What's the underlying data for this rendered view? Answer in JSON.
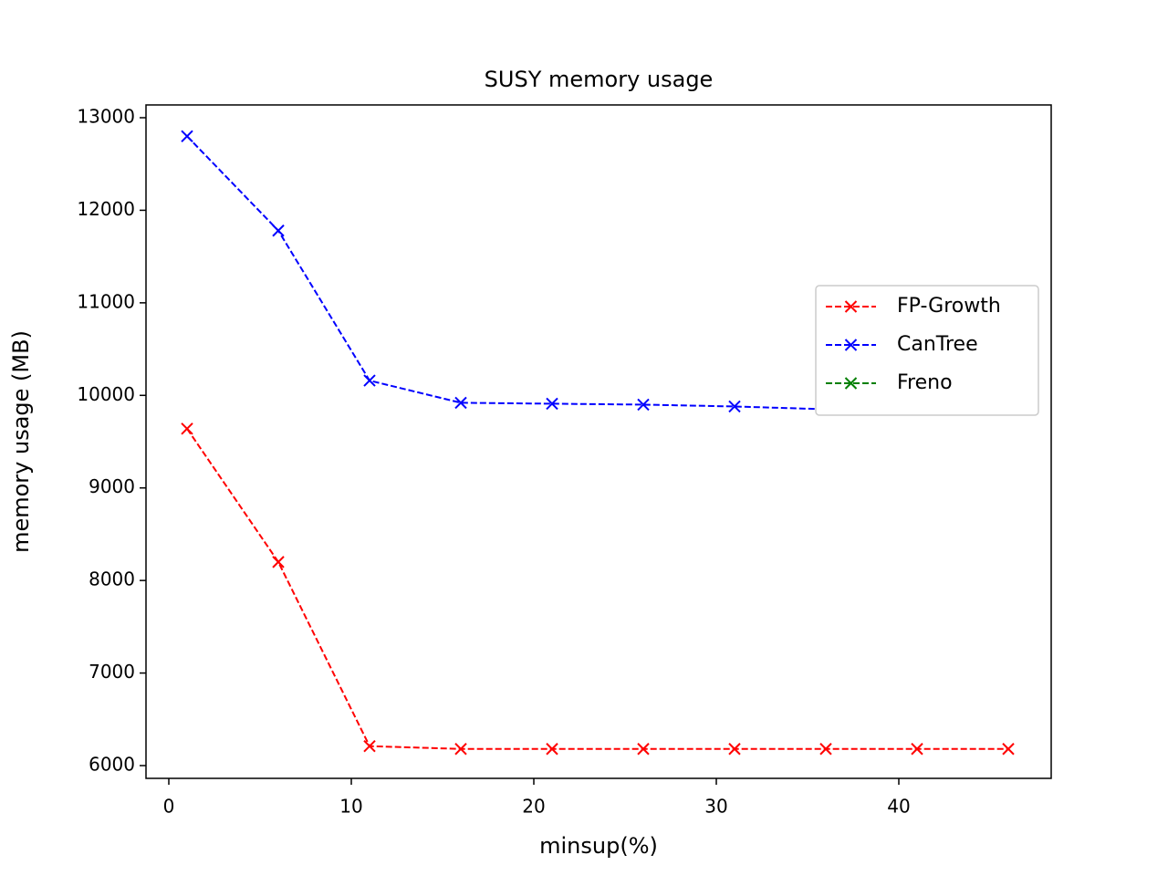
{
  "chart_data": {
    "type": "line",
    "title": "SUSY memory usage",
    "xlabel": "minsup(%)",
    "ylabel": "memory usage (MB)",
    "x": [
      1,
      6,
      11,
      16,
      21,
      26,
      31,
      36,
      41,
      46
    ],
    "series": [
      {
        "name": "FP-Growth",
        "color": "#ff0000",
        "linestyle": "dashed",
        "marker": "x",
        "values": [
          9640,
          8200,
          6210,
          6180,
          6180,
          6180,
          6180,
          6180,
          6180,
          6180
        ]
      },
      {
        "name": "CanTree",
        "color": "#0000ff",
        "linestyle": "dashed",
        "marker": "x",
        "values": [
          12800,
          11780,
          10160,
          9920,
          9910,
          9900,
          9880,
          9850,
          9860,
          9870
        ]
      },
      {
        "name": "Freno",
        "color": "#008000",
        "linestyle": "dashed",
        "marker": "x",
        "values": [
          null,
          null,
          null,
          null,
          null,
          null,
          null,
          null,
          null,
          null
        ]
      }
    ],
    "xlim": [
      -1.25,
      48.35
    ],
    "xticks": [
      0,
      10,
      20,
      30,
      40
    ],
    "ylim": [
      5862,
      13138
    ],
    "yticks": [
      6000,
      7000,
      8000,
      9000,
      10000,
      11000,
      12000,
      13000
    ],
    "grid": false,
    "legend": "center right"
  }
}
